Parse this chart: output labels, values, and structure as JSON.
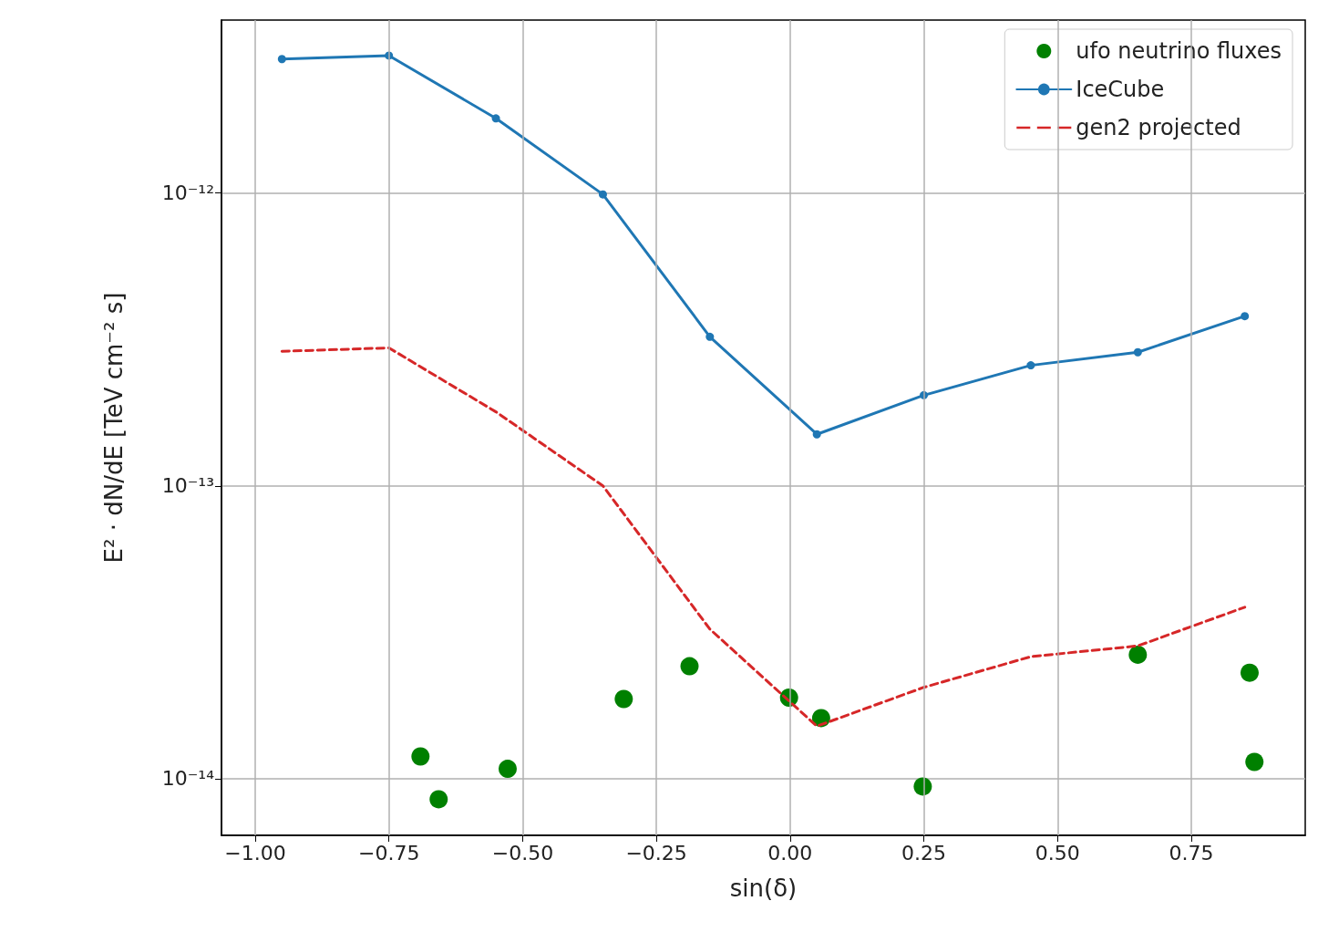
{
  "chart_data": {
    "type": "line",
    "xlabel": "sin(δ)",
    "ylabel": "E² · dN/dE [TeV cm⁻² s]",
    "log": "y",
    "grid": true,
    "legend": "top right",
    "xlim": [
      -1.063,
      0.963
    ],
    "ylim": [
      6.4e-15,
      3.9e-12
    ],
    "xticks": [
      {
        "value": -1,
        "label": "−1.00"
      },
      {
        "value": -0.75,
        "label": "−0.75"
      },
      {
        "value": -0.5,
        "label": "−0.50"
      },
      {
        "value": -0.25,
        "label": "−0.25"
      },
      {
        "value": 0,
        "label": "0.00"
      },
      {
        "value": 0.25,
        "label": "0.25"
      },
      {
        "value": 0.5,
        "label": "0.50"
      },
      {
        "value": 0.75,
        "label": "0.75"
      }
    ],
    "yticks": [
      {
        "value": 1e-14,
        "label": "10⁻¹⁴"
      },
      {
        "value": 1e-13,
        "label": "10⁻¹³"
      },
      {
        "value": 1e-12,
        "label": "10⁻¹²"
      }
    ],
    "series": [
      {
        "name": "ufo neutrino fluxes",
        "type": "scatter",
        "color": "#008000",
        "marker": "circle",
        "x": [
          -0.691,
          -0.657,
          -0.528,
          -0.311,
          -0.188,
          -0.002,
          0.058,
          0.248,
          0.65,
          0.859,
          0.868
        ],
        "values": [
          1.19e-14,
          8.5e-15,
          1.08e-14,
          1.87e-14,
          2.42e-14,
          1.89e-14,
          1.61e-14,
          9.4e-15,
          2.65e-14,
          2.3e-14,
          1.14e-14
        ]
      },
      {
        "name": "IceCube",
        "color": "#1f77b4",
        "marker": "circle",
        "line_style": "solid",
        "x": [
          -0.95,
          -0.75,
          -0.55,
          -0.35,
          -0.15,
          0.05,
          0.25,
          0.45,
          0.65,
          0.85
        ],
        "values": [
          2.87e-12,
          2.95e-12,
          1.8e-12,
          9.9e-13,
          3.23e-13,
          1.5e-13,
          2.04e-13,
          2.58e-13,
          2.86e-13,
          3.8e-13
        ]
      },
      {
        "name": "gen2 projected",
        "color": "#d62728",
        "marker": "none",
        "line_style": "dashed",
        "x": [
          -0.95,
          -0.75,
          -0.55,
          -0.35,
          -0.15,
          0.05,
          0.25,
          0.45,
          0.65,
          0.85
        ],
        "values": [
          2.88e-13,
          2.96e-13,
          1.79e-13,
          1e-13,
          3.24e-14,
          1.51e-14,
          2.05e-14,
          2.61e-14,
          2.84e-14,
          3.85e-14
        ]
      }
    ]
  }
}
